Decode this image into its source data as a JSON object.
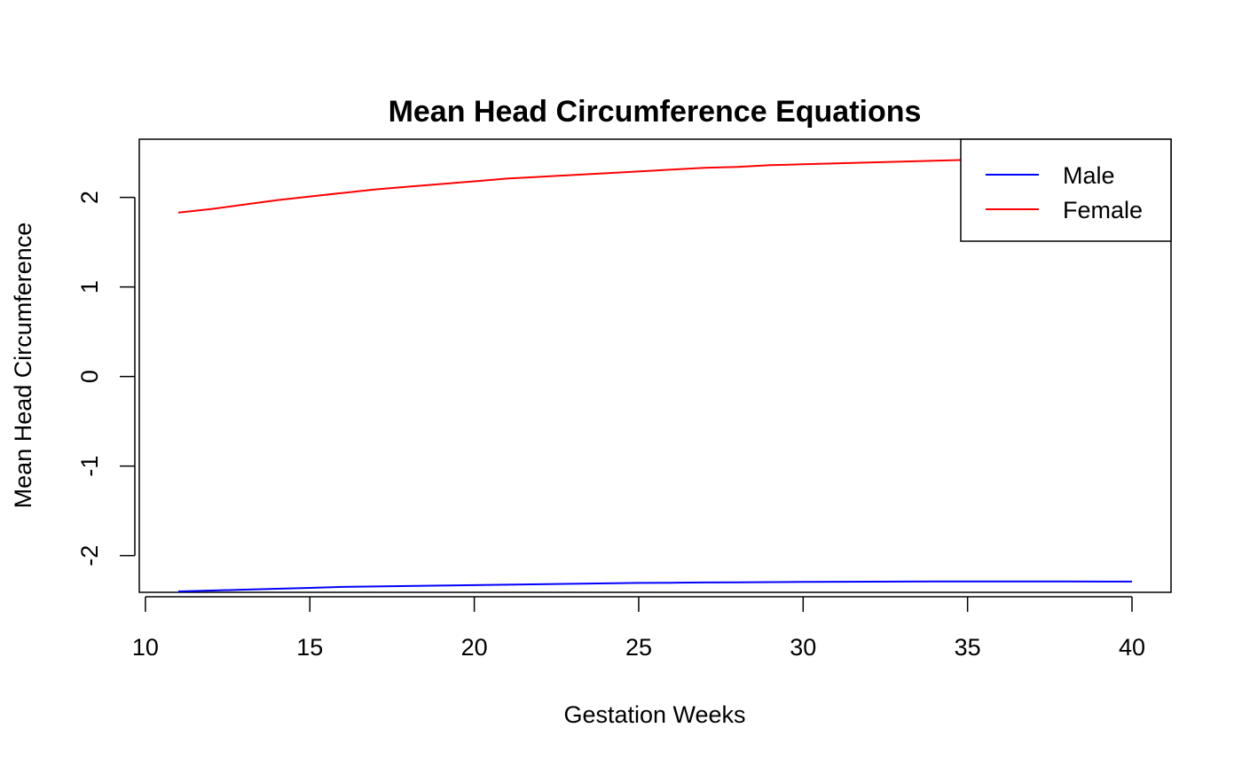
{
  "chart_data": {
    "type": "line",
    "title": "Mean Head Circumference Equations",
    "xlabel": "Gestation Weeks",
    "ylabel": "Mean Head Circumference",
    "xlim": [
      11,
      40
    ],
    "ylim": [
      -2.41,
      2.65
    ],
    "x_ticks": [
      10,
      15,
      20,
      25,
      30,
      35,
      40
    ],
    "y_ticks": [
      -2,
      -1,
      0,
      1,
      2
    ],
    "grid": false,
    "legend_position": "top-right",
    "x": [
      11,
      12,
      13,
      14,
      15,
      16,
      17,
      18,
      19,
      20,
      21,
      22,
      23,
      24,
      25,
      26,
      27,
      28,
      29,
      30,
      31,
      32,
      33,
      34,
      35,
      36,
      37,
      38,
      39,
      40
    ],
    "series": [
      {
        "name": "Male",
        "color": "#0000ff",
        "values": [
          -2.4,
          -2.39,
          -2.38,
          -2.37,
          -2.36,
          -2.35,
          -2.345,
          -2.34,
          -2.335,
          -2.33,
          -2.325,
          -2.32,
          -2.315,
          -2.31,
          -2.305,
          -2.303,
          -2.3,
          -2.298,
          -2.296,
          -2.294,
          -2.292,
          -2.291,
          -2.29,
          -2.289,
          -2.288,
          -2.288,
          -2.288,
          -2.289,
          -2.29,
          -2.29
        ]
      },
      {
        "name": "Female",
        "color": "#ff0000",
        "values": [
          1.83,
          1.87,
          1.92,
          1.97,
          2.01,
          2.05,
          2.09,
          2.12,
          2.15,
          2.18,
          2.21,
          2.23,
          2.25,
          2.27,
          2.29,
          2.31,
          2.33,
          2.34,
          2.36,
          2.37,
          2.38,
          2.39,
          2.4,
          2.41,
          2.42,
          2.43,
          2.43,
          2.44,
          2.44,
          2.45
        ]
      }
    ]
  }
}
